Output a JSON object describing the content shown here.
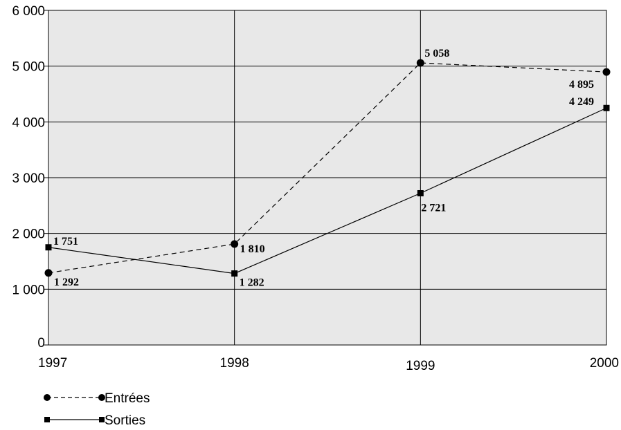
{
  "chart_data": {
    "type": "line",
    "categories": [
      "1997",
      "1998",
      "1999",
      "2000"
    ],
    "ylim": [
      0,
      6000
    ],
    "yticks": [
      0,
      1000,
      2000,
      3000,
      4000,
      5000,
      6000
    ],
    "ytick_labels": [
      "0",
      "1 000",
      "2 000",
      "3 000",
      "4 000",
      "5 000",
      "6 000"
    ],
    "grid": true,
    "background_color": "#e8e8e8",
    "legend_placement": "bottom-left",
    "series": [
      {
        "name": "Entrées",
        "values": [
          1292,
          1810,
          5058,
          4895
        ],
        "labels": [
          "1 292",
          "1 810",
          "5 058",
          "4 895"
        ],
        "line_style": "dashed",
        "marker": "circle",
        "color": "#000000"
      },
      {
        "name": "Sorties",
        "values": [
          1751,
          1282,
          2721,
          4249
        ],
        "labels": [
          "1 751",
          "1 282",
          "2 721",
          "4 249"
        ],
        "line_style": "solid",
        "marker": "square",
        "color": "#000000"
      }
    ]
  }
}
